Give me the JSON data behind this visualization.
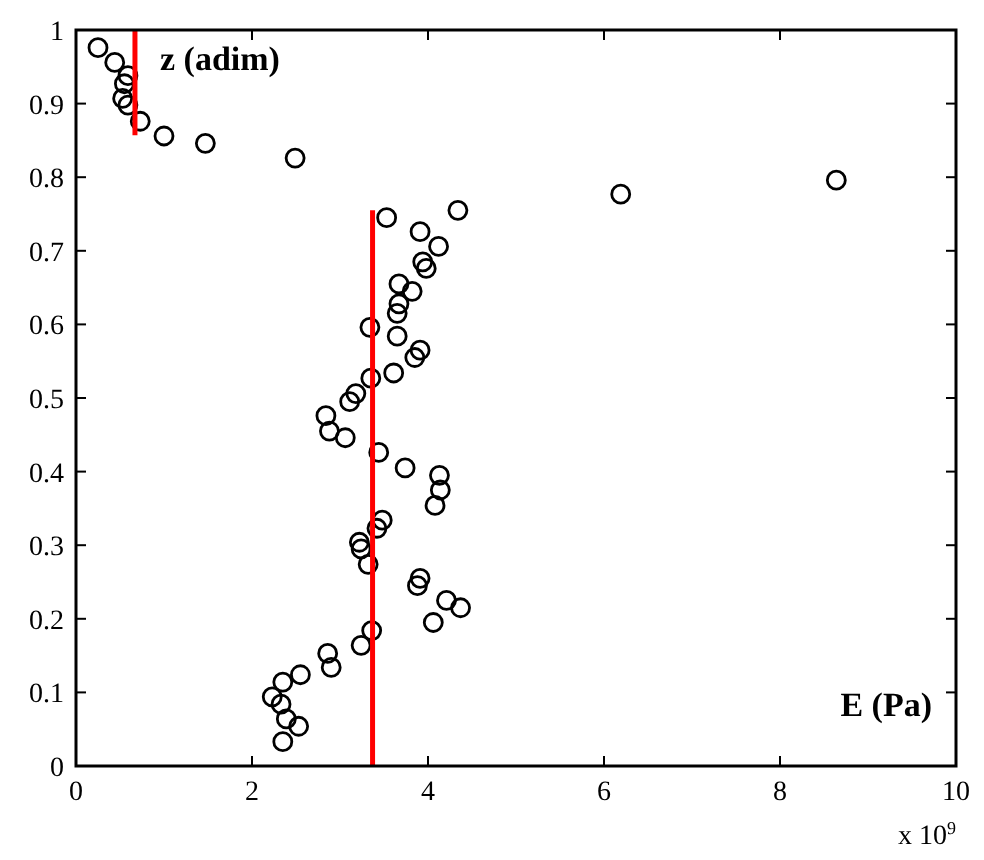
{
  "chart_data": {
    "type": "scatter",
    "xlabel": "E (Pa)",
    "ylabel": "z (adim)",
    "annotations": [
      "x 10$^{9}$"
    ],
    "xlim": [
      0,
      10
    ],
    "ylim": [
      0,
      1
    ],
    "xticks": [
      0,
      2,
      4,
      6,
      8,
      10
    ],
    "yticks": [
      0,
      0.1,
      0.2,
      0.3,
      0.4,
      0.5,
      0.6,
      0.7,
      0.8,
      0.9,
      1
    ],
    "grid": false,
    "series": [
      {
        "color": "#000000",
        "marker": "circle",
        "x": [
          0.25,
          0.44,
          0.59,
          0.55,
          0.53,
          0.59,
          0.73,
          1.0,
          1.47,
          2.49,
          3.53,
          4.34,
          6.19,
          8.64,
          3.91,
          4.12,
          3.94,
          3.98,
          3.67,
          3.82,
          3.67,
          3.65,
          3.34,
          3.65,
          3.91,
          3.85,
          3.61,
          3.35,
          3.18,
          3.11,
          2.84,
          2.88,
          3.06,
          3.44,
          3.74,
          4.13,
          4.14,
          4.08,
          3.48,
          3.42,
          3.22,
          3.24,
          3.32,
          3.91,
          3.88,
          4.21,
          4.37,
          4.06,
          3.36,
          3.24,
          2.86,
          2.9,
          2.55,
          2.35,
          2.23,
          2.33,
          2.39,
          2.53,
          2.35
        ],
        "values": [
          0.976,
          0.956,
          0.938,
          0.927,
          0.907,
          0.898,
          0.876,
          0.856,
          0.846,
          0.826,
          0.745,
          0.755,
          0.777,
          0.796,
          0.726,
          0.706,
          0.685,
          0.676,
          0.655,
          0.645,
          0.628,
          0.615,
          0.596,
          0.584,
          0.565,
          0.555,
          0.534,
          0.527,
          0.506,
          0.495,
          0.476,
          0.455,
          0.446,
          0.426,
          0.405,
          0.395,
          0.375,
          0.354,
          0.334,
          0.323,
          0.304,
          0.295,
          0.274,
          0.255,
          0.245,
          0.225,
          0.215,
          0.195,
          0.184,
          0.164,
          0.153,
          0.134,
          0.124,
          0.114,
          0.094,
          0.084,
          0.064,
          0.054,
          0.033
        ]
      },
      {
        "type": "line",
        "color": "#ff0000",
        "line_style": "solid",
        "x": [
          0.67,
          0.67
        ],
        "values": [
          1,
          0.857
        ]
      },
      {
        "type": "line",
        "color": "#ff0000",
        "line_style": "solid",
        "x": [
          3.37,
          3.37
        ],
        "values": [
          0,
          0.755
        ]
      }
    ]
  }
}
